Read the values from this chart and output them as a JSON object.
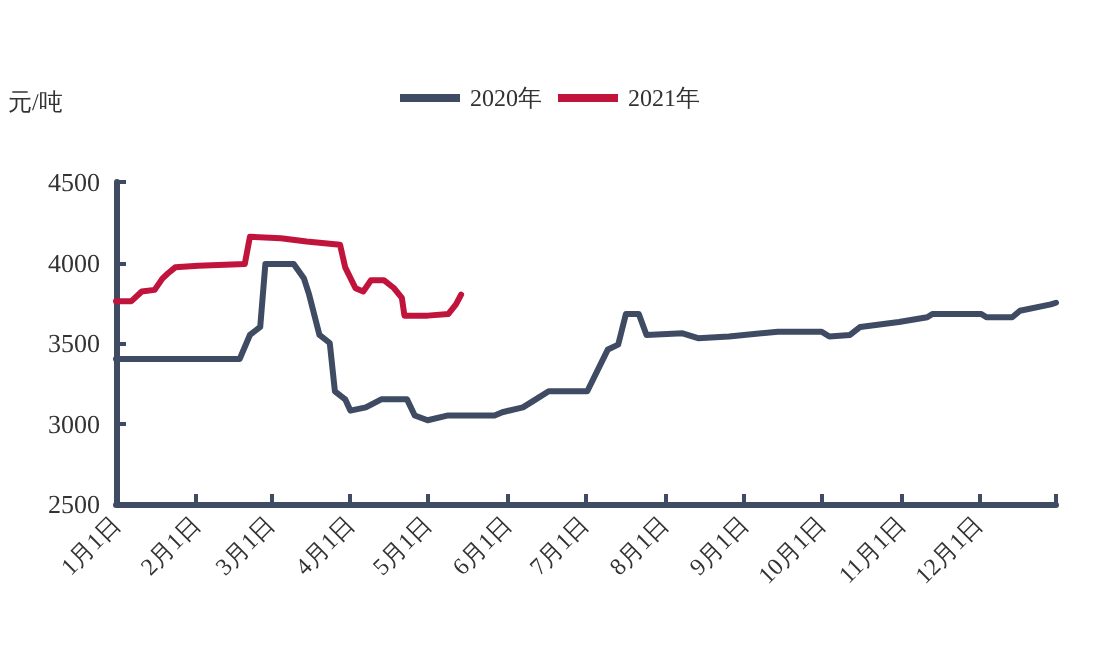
{
  "chart_data": {
    "type": "line",
    "ylabel": "元/吨",
    "legend": "top",
    "marker": "none",
    "line_style": "solid",
    "grid": false,
    "xlim": [
      "--01-01",
      "--12-31"
    ],
    "ylim": [
      2500,
      4500
    ],
    "yticks": [
      2500,
      3000,
      3500,
      4000,
      4500
    ],
    "xticks": [
      {
        "value": "--01-01",
        "label": "1月1日"
      },
      {
        "value": "--02-01",
        "label": "2月1日"
      },
      {
        "value": "--03-01",
        "label": "3月1日"
      },
      {
        "value": "--04-01",
        "label": "4月1日"
      },
      {
        "value": "--05-01",
        "label": "5月1日"
      },
      {
        "value": "--06-01",
        "label": "6月1日"
      },
      {
        "value": "--07-01",
        "label": "7月1日"
      },
      {
        "value": "--08-01",
        "label": "8月1日"
      },
      {
        "value": "--09-01",
        "label": "9月1日"
      },
      {
        "value": "--10-01",
        "label": "10月1日"
      },
      {
        "value": "--11-01",
        "label": "11月1日"
      },
      {
        "value": "--12-01",
        "label": "12月1日"
      },
      {
        "value": "--12-31",
        "label": null
      }
    ],
    "series": [
      {
        "name": "2020年",
        "color": "#3e4b63",
        "x": [
          "--01-01",
          "--02-18",
          "--02-22",
          "--02-26",
          "--02-28",
          "--03-10",
          "--03-14",
          "--03-16",
          "--03-20",
          "--03-24",
          "--03-26",
          "--03-30",
          "--04-01",
          "--04-07",
          "--04-13",
          "--04-23",
          "--04-26",
          "--05-01",
          "--05-09",
          "--05-27",
          "--05-30",
          "--06-07",
          "--06-12",
          "--06-17",
          "--07-02",
          "--07-10",
          "--07-14",
          "--07-17",
          "--07-22",
          "--07-25",
          "--08-08",
          "--08-14",
          "--08-26",
          "--09-14",
          "--10-01",
          "--10-04",
          "--10-12",
          "--10-16",
          "--10-31",
          "--11-11",
          "--11-13",
          "--12-02",
          "--12-04",
          "--12-14",
          "--12-17",
          "--12-29",
          "--12-31"
        ],
        "values": [
          3400,
          3400,
          3550,
          3600,
          3990,
          3990,
          3900,
          3800,
          3550,
          3500,
          3200,
          3150,
          3080,
          3100,
          3150,
          3150,
          3050,
          3020,
          3050,
          3050,
          3070,
          3100,
          3150,
          3200,
          3200,
          3460,
          3490,
          3680,
          3680,
          3550,
          3560,
          3530,
          3540,
          3570,
          3570,
          3540,
          3550,
          3600,
          3630,
          3660,
          3680,
          3680,
          3660,
          3660,
          3700,
          3740,
          3750
        ]
      },
      {
        "name": "2021年",
        "color": "#c0143c",
        "x": [
          "--01-01",
          "--01-07",
          "--01-11",
          "--01-16",
          "--01-19",
          "--01-21",
          "--01-24",
          "--02-02",
          "--02-20",
          "--02-22",
          "--03-05",
          "--03-15",
          "--03-28",
          "--03-30",
          "--04-03",
          "--04-06",
          "--04-09",
          "--04-14",
          "--04-18",
          "--04-21",
          "--04-22",
          "--05-01",
          "--05-09",
          "--05-12",
          "--05-14"
        ],
        "values": [
          3760,
          3760,
          3820,
          3830,
          3900,
          3930,
          3970,
          3980,
          3990,
          4160,
          4150,
          4130,
          4110,
          3970,
          3840,
          3820,
          3890,
          3890,
          3840,
          3780,
          3670,
          3670,
          3680,
          3740,
          3800
        ]
      }
    ]
  }
}
